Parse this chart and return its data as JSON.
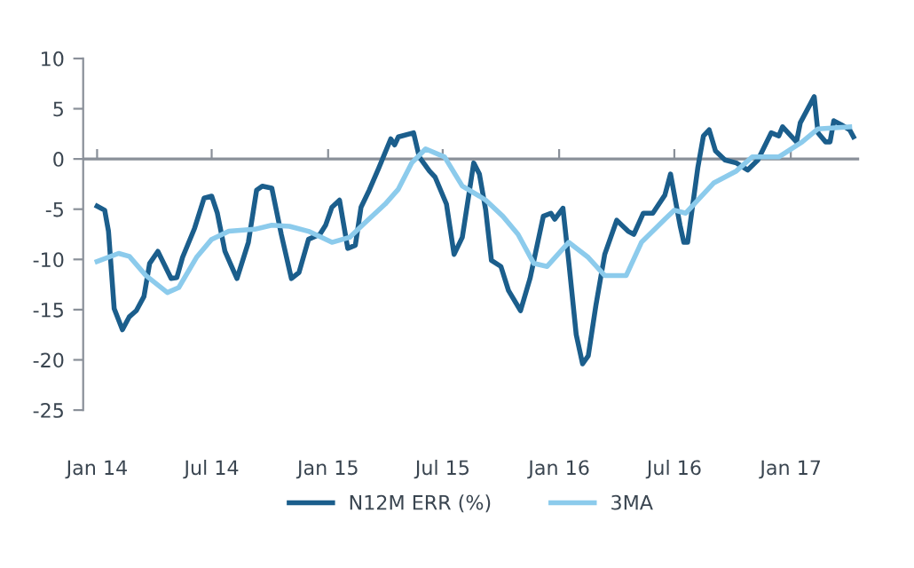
{
  "chart_data": {
    "type": "line",
    "ylim": [
      -25,
      10
    ],
    "yticks": [
      10,
      5,
      0,
      -5,
      -10,
      -15,
      -20,
      -25
    ],
    "xlim": [
      "2013-12-10",
      "2017-04-19"
    ],
    "xticks": [
      {
        "value": "2014-01-01",
        "label": "Jan 14"
      },
      {
        "value": "2014-07-01",
        "label": "Jul 14"
      },
      {
        "value": "2015-01-01",
        "label": "Jan 15"
      },
      {
        "value": "2015-07-01",
        "label": "Jul 15"
      },
      {
        "value": "2016-01-01",
        "label": "Jan 16"
      },
      {
        "value": "2016-07-01",
        "label": "Jul 16"
      },
      {
        "value": "2017-01-01",
        "label": "Jan 17"
      }
    ],
    "grid": false,
    "ref_lines": [
      {
        "axis": "y",
        "value": 0,
        "color": "#8a9099"
      }
    ],
    "legend": "bottom",
    "marker": "none",
    "line_style": "solid",
    "series": [
      {
        "name": "N12M ERR (%)",
        "color": "#1b5e8c",
        "x": [
          "2014-01-01",
          "2014-01-13",
          "2014-01-19",
          "2014-01-28",
          "2014-02-10",
          "2014-02-21",
          "2014-03-04",
          "2014-03-16",
          "2014-03-25",
          "2014-04-07",
          "2014-04-28",
          "2014-05-07",
          "2014-05-16",
          "2014-06-04",
          "2014-06-19",
          "2014-07-01",
          "2014-07-10",
          "2014-07-22",
          "2014-08-10",
          "2014-08-28",
          "2014-09-10",
          "2014-09-19",
          "2014-10-04",
          "2014-10-19",
          "2014-11-04",
          "2014-11-16",
          "2014-12-01",
          "2014-12-19",
          "2014-12-28",
          "2015-01-07",
          "2015-01-19",
          "2015-02-01",
          "2015-02-13",
          "2015-02-22",
          "2015-03-07",
          "2015-03-22",
          "2015-04-10",
          "2015-04-16",
          "2015-04-22",
          "2015-05-16",
          "2015-05-25",
          "2015-06-10",
          "2015-06-19",
          "2015-07-07",
          "2015-07-19",
          "2015-08-01",
          "2015-08-19",
          "2015-08-28",
          "2015-09-07",
          "2015-09-16",
          "2015-10-01",
          "2015-10-13",
          "2015-11-01",
          "2015-11-16",
          "2015-12-07",
          "2015-12-19",
          "2015-12-25",
          "2016-01-07",
          "2016-01-16",
          "2016-01-28",
          "2016-02-07",
          "2016-02-16",
          "2016-02-28",
          "2016-03-13",
          "2016-04-01",
          "2016-04-19",
          "2016-04-28",
          "2016-05-13",
          "2016-05-28",
          "2016-06-16",
          "2016-06-25",
          "2016-07-10",
          "2016-07-16",
          "2016-07-22",
          "2016-08-07",
          "2016-08-16",
          "2016-08-25",
          "2016-09-04",
          "2016-09-19",
          "2016-10-07",
          "2016-10-25",
          "2016-11-10",
          "2016-12-01",
          "2016-12-13",
          "2016-12-19",
          "2017-01-10",
          "2017-01-16",
          "2017-02-07",
          "2017-02-13",
          "2017-02-25",
          "2017-03-04",
          "2017-03-10",
          "2017-03-22",
          "2017-04-04",
          "2017-04-10"
        ],
        "values": [
          -4.7,
          -5.1,
          -7.2,
          -14.9,
          -17.0,
          -15.7,
          -15.1,
          -13.7,
          -10.4,
          -9.2,
          -11.9,
          -11.8,
          -9.8,
          -6.9,
          -3.9,
          -3.7,
          -5.4,
          -9.2,
          -11.9,
          -8.3,
          -3.1,
          -2.7,
          -2.9,
          -7.5,
          -11.9,
          -11.3,
          -8.0,
          -7.5,
          -6.6,
          -4.8,
          -4.1,
          -8.9,
          -8.6,
          -4.8,
          -3.1,
          -0.9,
          2.0,
          1.4,
          2.2,
          2.6,
          0.2,
          -1.2,
          -1.8,
          -4.5,
          -9.5,
          -7.8,
          -0.4,
          -1.5,
          -5.1,
          -10.1,
          -10.7,
          -13.1,
          -15.1,
          -11.9,
          -5.7,
          -5.4,
          -6.0,
          -4.9,
          -10.1,
          -17.5,
          -20.4,
          -19.6,
          -14.6,
          -9.5,
          -6.1,
          -7.2,
          -7.5,
          -5.4,
          -5.4,
          -3.6,
          -1.5,
          -6.6,
          -8.3,
          -8.3,
          -0.9,
          2.3,
          2.9,
          0.8,
          -0.1,
          -0.4,
          -1.1,
          -0.1,
          2.6,
          2.3,
          3.2,
          1.7,
          3.6,
          6.2,
          2.6,
          1.7,
          1.7,
          3.8,
          3.4,
          2.9,
          2.2
        ]
      },
      {
        "name": "3MA",
        "color": "#8ccbec",
        "x": [
          "2014-01-01",
          "2014-02-04",
          "2014-02-21",
          "2014-03-19",
          "2014-04-22",
          "2014-05-10",
          "2014-06-07",
          "2014-07-01",
          "2014-07-28",
          "2014-09-07",
          "2014-10-04",
          "2014-11-01",
          "2014-12-01",
          "2015-01-07",
          "2015-02-04",
          "2015-03-01",
          "2015-04-01",
          "2015-04-22",
          "2015-05-13",
          "2015-06-04",
          "2015-07-04",
          "2015-08-01",
          "2015-08-28",
          "2015-09-07",
          "2015-10-04",
          "2015-10-28",
          "2015-11-22",
          "2015-12-13",
          "2016-01-16",
          "2016-02-16",
          "2016-03-13",
          "2016-04-16",
          "2016-05-10",
          "2016-06-16",
          "2016-07-01",
          "2016-07-19",
          "2016-09-01",
          "2016-10-07",
          "2016-11-01",
          "2016-12-13",
          "2017-01-19",
          "2017-02-13",
          "2017-04-04"
        ],
        "values": [
          -10.2,
          -9.4,
          -9.7,
          -11.6,
          -13.3,
          -12.8,
          -9.8,
          -8.0,
          -7.2,
          -7.0,
          -6.6,
          -6.7,
          -7.2,
          -8.3,
          -7.8,
          -6.3,
          -4.5,
          -3.0,
          -0.4,
          1.0,
          0.2,
          -2.7,
          -3.7,
          -4.1,
          -5.7,
          -7.5,
          -10.4,
          -10.7,
          -8.3,
          -9.8,
          -11.6,
          -11.6,
          -8.3,
          -6.0,
          -5.1,
          -5.4,
          -2.4,
          -1.2,
          0.2,
          0.2,
          1.7,
          3.0,
          3.2
        ]
      }
    ]
  }
}
